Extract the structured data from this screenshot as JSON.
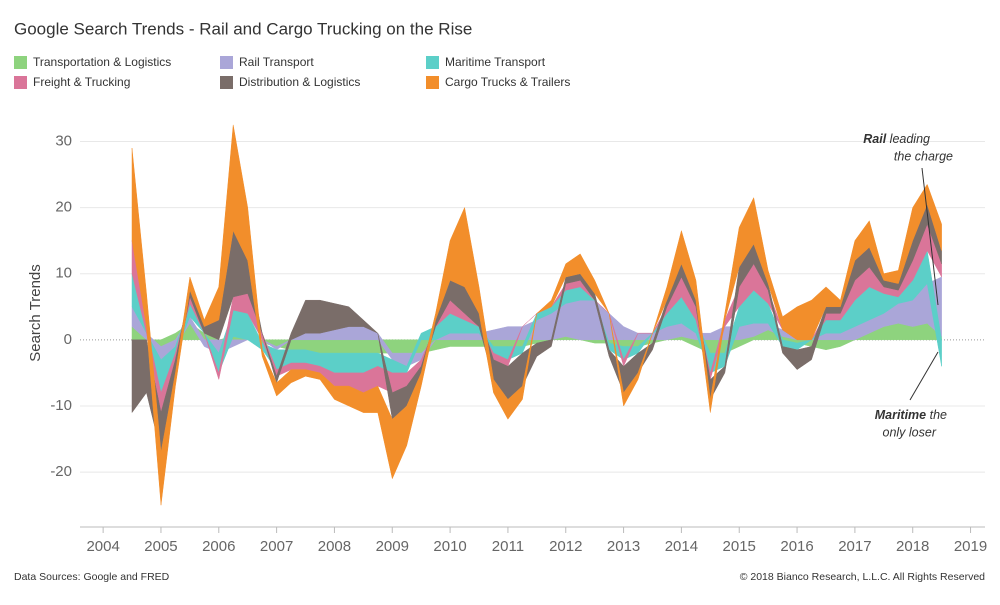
{
  "chart_data": {
    "type": "area",
    "stacked": true,
    "title": "Google Search Trends - Rail and Cargo Trucking on the Rise",
    "y_label": "Search Trends",
    "x": [
      2004.5,
      2004.75,
      2005,
      2005.25,
      2005.5,
      2005.75,
      2006,
      2006.25,
      2006.5,
      2006.75,
      2007,
      2007.25,
      2007.5,
      2007.75,
      2008,
      2008.25,
      2008.5,
      2008.75,
      2009,
      2009.25,
      2009.5,
      2009.75,
      2010,
      2010.25,
      2010.5,
      2010.75,
      2011,
      2011.25,
      2011.5,
      2011.75,
      2012,
      2012.25,
      2012.5,
      2012.75,
      2013,
      2013.25,
      2013.5,
      2013.75,
      2014,
      2014.25,
      2014.5,
      2014.75,
      2015,
      2015.25,
      2015.5,
      2015.75,
      2016,
      2016.25,
      2016.5,
      2016.75,
      2017,
      2017.25,
      2017.5,
      2017.75,
      2018,
      2018.25,
      2018.5
    ],
    "xlim": [
      2003.6,
      2019.25
    ],
    "xticks": [
      2004,
      2005,
      2006,
      2007,
      2008,
      2009,
      2010,
      2011,
      2012,
      2013,
      2014,
      2015,
      2016,
      2017,
      2018,
      2019
    ],
    "ylim": [
      -28,
      34
    ],
    "yticks": [
      -20,
      -10,
      0,
      10,
      20,
      30
    ],
    "grid": true,
    "legend_order": [
      0,
      3,
      1,
      4,
      2,
      5
    ],
    "series": [
      {
        "name": "Transportation & Logistics",
        "color": "#8ed37e",
        "values": [
          2,
          0,
          -1,
          1,
          2.5,
          1,
          0,
          0.5,
          0,
          -0.5,
          -1,
          -1.5,
          -1.5,
          -2,
          -2,
          -2,
          -2,
          -2,
          -2,
          -2,
          -2,
          -1.5,
          -1,
          -1,
          -1,
          -1,
          -1,
          -1,
          -0.5,
          0,
          0.5,
          0,
          -0.5,
          -0.5,
          -1,
          -1,
          -0.5,
          0,
          0.5,
          -1,
          -2,
          -2,
          -1,
          0.5,
          1.5,
          0.5,
          -0.5,
          -1,
          -1.5,
          -1,
          0,
          1,
          2,
          2.5,
          2,
          2.5,
          0.5
        ]
      },
      {
        "name": "Rail Transport",
        "color": "#aaa6d8",
        "values": [
          3,
          1,
          -2,
          -1,
          1,
          -1,
          -2,
          -1,
          0,
          0,
          -0.5,
          0,
          1,
          1,
          1.5,
          2,
          2,
          1,
          -1,
          -2,
          -1,
          0,
          1,
          1,
          1,
          1.5,
          2,
          2,
          3,
          4,
          5,
          6,
          6,
          4,
          2,
          1,
          1,
          2,
          2,
          1,
          1,
          2,
          2,
          2,
          1,
          1,
          0,
          0,
          1,
          1,
          2,
          2,
          2,
          3,
          4,
          6,
          9
        ]
      },
      {
        "name": "Maritime Transport",
        "color": "#5ccfc8",
        "values": [
          5,
          0,
          -5,
          -1,
          2,
          0,
          -3,
          4,
          4,
          -1,
          -3,
          -2,
          -2,
          -2,
          -3,
          -3,
          -3,
          -2,
          -2,
          -1,
          1,
          2,
          3,
          2,
          1,
          -1,
          -2,
          -1,
          1,
          1,
          2,
          2,
          0,
          -1,
          -2,
          -1,
          0,
          2,
          4,
          2,
          -3,
          -2,
          3,
          5,
          3,
          -1,
          -1,
          0,
          2,
          2,
          4,
          5,
          3,
          1,
          3,
          5,
          -4
        ]
      },
      {
        "name": "Freight & Trucking",
        "color": "#da7599",
        "values": [
          5,
          1,
          -3,
          -1,
          1,
          0,
          -1,
          2,
          3,
          1,
          -1,
          -1,
          -1,
          -1,
          -2,
          -2,
          -3,
          -3,
          -3,
          -2,
          -1,
          0,
          2,
          1,
          0,
          -1,
          -1,
          0,
          0,
          0,
          1,
          1,
          0,
          0,
          -1,
          0,
          0,
          1,
          3,
          2,
          -1,
          1,
          3,
          4,
          2,
          0,
          0,
          0,
          1,
          1,
          3,
          3,
          1,
          1,
          3,
          4,
          2
        ]
      },
      {
        "name": "Distribution & Logistics",
        "color": "#7a6d69",
        "values": [
          -11,
          -8,
          -6,
          -2,
          1,
          1,
          3,
          10,
          5,
          0,
          -1,
          1,
          5,
          5,
          4,
          3,
          1,
          0,
          -4,
          -3,
          -1,
          1,
          3,
          4,
          2,
          -3,
          -5,
          -5,
          -2,
          -1,
          1,
          1,
          1,
          -1,
          -4,
          -3,
          -1,
          1,
          2,
          1,
          -3,
          -1,
          3,
          3,
          1,
          -1,
          -3,
          -2,
          1,
          1,
          3,
          3,
          1,
          1,
          3,
          3,
          2
        ]
      },
      {
        "name": "Cargo Trucks & Trailers",
        "color": "#f28e2b",
        "values": [
          14,
          5,
          -8,
          -2,
          2,
          1,
          5,
          16,
          8,
          -1,
          -2,
          -2,
          -1,
          -1,
          -2,
          -3,
          -3,
          -4,
          -9,
          -6,
          -2,
          1,
          6,
          12,
          4,
          -2,
          -3,
          -2,
          0,
          1,
          2,
          3,
          2,
          0,
          -2,
          -1,
          0,
          2,
          5,
          3,
          -2,
          1,
          6,
          7,
          2,
          2,
          5,
          6,
          3,
          1,
          3,
          4,
          1,
          2,
          5,
          3,
          4
        ]
      }
    ],
    "annotations": [
      {
        "bold": "Rail",
        "text": "leading",
        "line2": "the charge"
      },
      {
        "bold": "Maritime",
        "text": "the",
        "line2": "only loser"
      }
    ],
    "source": "Data Sources: Google and FRED",
    "copyright": "© 2018 Bianco Research, L.L.C. All Rights Reserved"
  }
}
